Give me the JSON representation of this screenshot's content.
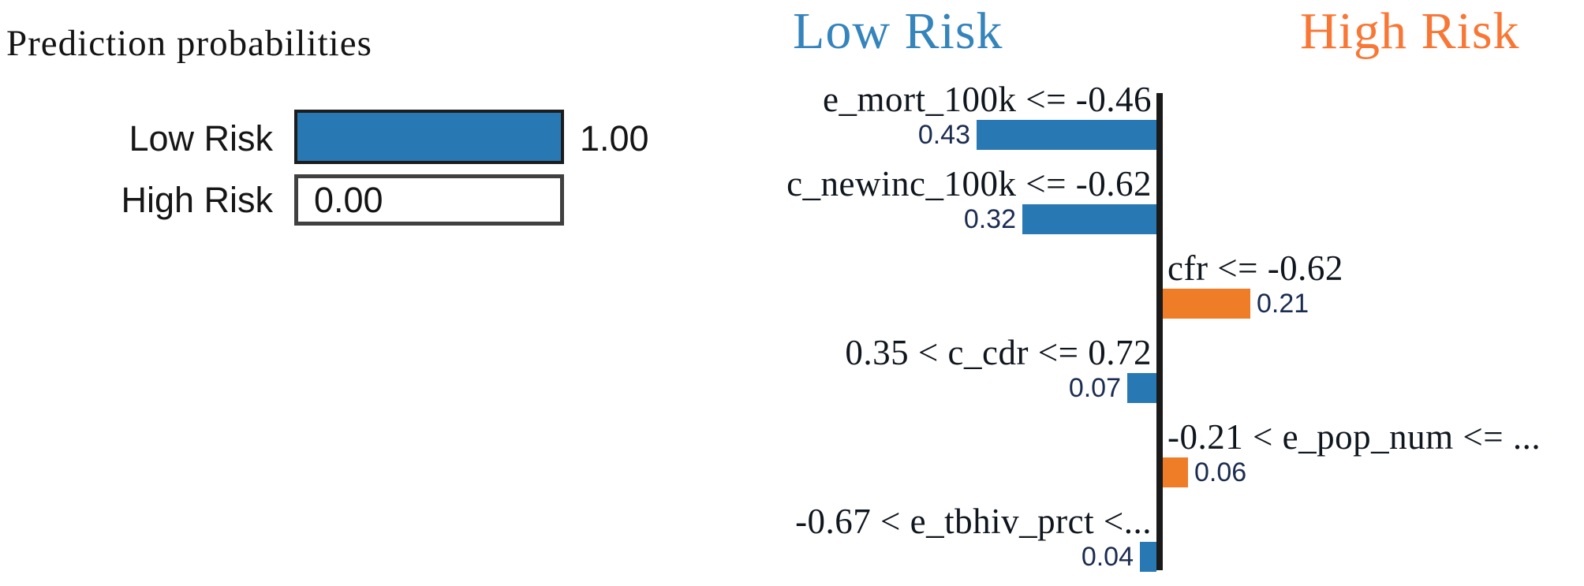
{
  "chart_data": [
    {
      "type": "bar",
      "panel": "prediction-probabilities",
      "title": "Prediction probabilities",
      "orientation": "horizontal",
      "categories": [
        "Low Risk",
        "High Risk"
      ],
      "values": [
        1.0,
        0.0
      ],
      "value_labels": [
        "1.00",
        "0.00"
      ],
      "xlim": [
        0,
        1
      ],
      "bar_colors": [
        "#2878b4",
        "#ffffff"
      ]
    },
    {
      "type": "bar",
      "panel": "feature-contributions",
      "orientation": "horizontal-diverging",
      "headers": [
        {
          "label": "Low Risk",
          "color": "#3584bc",
          "side": "left"
        },
        {
          "label": "High Risk",
          "color": "#f97735",
          "side": "right"
        }
      ],
      "bar_colors": {
        "left": "#2878b4",
        "right": "#ef7d28"
      },
      "axis_color": "#1a1a1a",
      "features": [
        {
          "label": "e_mort_100k <= -0.46",
          "value": 0.43,
          "value_label": "0.43",
          "side": "left",
          "class": "Low Risk"
        },
        {
          "label": "c_newinc_100k <= -0.62",
          "value": 0.32,
          "value_label": "0.32",
          "side": "left",
          "class": "Low Risk"
        },
        {
          "label": "cfr <= -0.62",
          "value": 0.21,
          "value_label": "0.21",
          "side": "right",
          "class": "High Risk"
        },
        {
          "label": "0.35 < c_cdr <= 0.72",
          "value": 0.07,
          "value_label": "0.07",
          "side": "left",
          "class": "Low Risk"
        },
        {
          "label": "-0.21 < e_pop_num <= ...",
          "value": 0.06,
          "value_label": "0.06",
          "side": "right",
          "class": "High Risk"
        },
        {
          "label": "-0.67 < e_tbhiv_prct <...",
          "value": 0.04,
          "value_label": "0.04",
          "side": "left",
          "class": "Low Risk"
        }
      ]
    }
  ]
}
